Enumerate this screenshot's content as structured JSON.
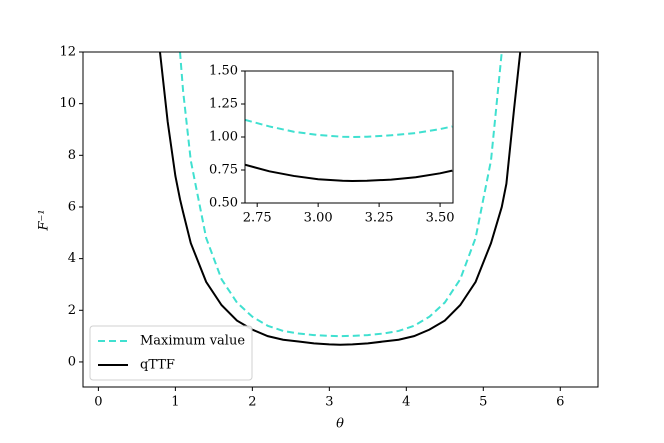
{
  "chart_data": [
    {
      "type": "line",
      "xlabel": "θ",
      "ylabel": "F⁻¹",
      "x": [
        0.8,
        0.9,
        1.0,
        1.06,
        1.1,
        1.2,
        1.4,
        1.6,
        1.8,
        2.0,
        2.2,
        2.4,
        2.6,
        2.8,
        3.0,
        3.14,
        3.3,
        3.5,
        3.7,
        3.9,
        4.1,
        4.3,
        4.5,
        4.7,
        4.9,
        5.1,
        5.24,
        5.3,
        5.4,
        5.48
      ],
      "series": [
        {
          "name": "Maximum value",
          "color": "#40e0d0",
          "dash": true,
          "values": [
            null,
            null,
            null,
            12,
            10.5,
            7.8,
            4.8,
            3.2,
            2.3,
            1.75,
            1.4,
            1.2,
            1.1,
            1.04,
            1.01,
            1.0,
            1.01,
            1.04,
            1.1,
            1.2,
            1.4,
            1.75,
            2.3,
            3.2,
            4.8,
            7.8,
            12,
            null,
            null,
            null
          ]
        },
        {
          "name": "qTTF",
          "color": "#000000",
          "dash": false,
          "values": [
            12,
            9.3,
            7.2,
            6.3,
            5.8,
            4.6,
            3.1,
            2.2,
            1.6,
            1.25,
            1.0,
            0.86,
            0.79,
            0.72,
            0.68,
            0.667,
            0.68,
            0.72,
            0.79,
            0.86,
            1.0,
            1.25,
            1.6,
            2.2,
            3.1,
            4.6,
            6.0,
            6.9,
            9.8,
            12
          ]
        }
      ],
      "xlim": [
        -0.2,
        6.49
      ],
      "ylim": [
        -0.97,
        12
      ],
      "xticks": [
        0,
        1,
        2,
        3,
        4,
        5,
        6
      ],
      "yticks": [
        0,
        2,
        4,
        6,
        8,
        10,
        12
      ],
      "legend": "lower left"
    },
    {
      "type": "line",
      "x": [
        2.7,
        2.8,
        2.9,
        3.0,
        3.1,
        3.14,
        3.2,
        3.3,
        3.4,
        3.5,
        3.55
      ],
      "series": [
        {
          "color": "#40e0d0",
          "dash": true,
          "values": [
            1.13,
            1.08,
            1.04,
            1.015,
            1.002,
            1.0,
            1.002,
            1.013,
            1.03,
            1.06,
            1.08
          ]
        },
        {
          "color": "#000000",
          "dash": false,
          "values": [
            0.79,
            0.74,
            0.705,
            0.68,
            0.669,
            0.667,
            0.669,
            0.677,
            0.695,
            0.725,
            0.745
          ]
        }
      ],
      "xlim": [
        2.7,
        3.553
      ],
      "ylim": [
        0.5,
        1.5
      ],
      "xticks": [
        2.75,
        {
          "value": 3,
          "label": "3.00"
        },
        3.25,
        {
          "value": 3.5,
          "label": "3.50"
        }
      ],
      "yticks": [
        {
          "value": 0.5,
          "label": "0.50"
        },
        0.75,
        {
          "value": 1,
          "label": "1.00"
        },
        1.25,
        {
          "value": 1.5,
          "label": "1.50"
        }
      ]
    }
  ]
}
